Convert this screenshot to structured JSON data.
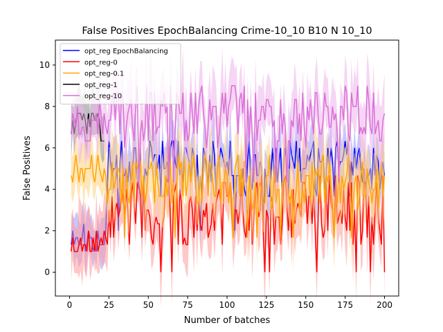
{
  "chart_data": {
    "type": "line",
    "title": "False Positives EpochBalancing Crime-10_10 B10 N 10_10",
    "xlabel": "Number of batches",
    "ylabel": "False Positives",
    "xlim": [
      -9,
      209
    ],
    "ylim": [
      -1.15,
      11.2
    ],
    "xticks": [
      0,
      25,
      50,
      75,
      100,
      125,
      150,
      175,
      200
    ],
    "yticks": [
      0,
      2,
      4,
      6,
      8,
      10
    ],
    "grid": false,
    "legend_position": "top-left",
    "series": [
      {
        "name": "opt_reg EpochBalancing",
        "color": "#0000ff",
        "band": "#9999ff",
        "mean": 5.0,
        "amp": 1.4,
        "band_w": 0.9,
        "seed": 11,
        "early": 1.7,
        "early_amp": 0.6
      },
      {
        "name": "opt_reg-0",
        "color": "#ff0000",
        "band": "#ff9999",
        "mean": 3.0,
        "amp": 1.8,
        "band_w": 1.3,
        "seed": 23,
        "early": 1.4,
        "early_amp": 0.5
      },
      {
        "name": "opt_reg-0.1",
        "color": "#ffa500",
        "band": "#ffd27f",
        "mean": 4.4,
        "amp": 1.3,
        "band_w": 1.2,
        "seed": 37,
        "early": 5.2,
        "early_amp": 0.9
      },
      {
        "name": "opt_reg-1",
        "color": "#000000",
        "band": "#888888",
        "mean": 6.5,
        "amp": 1.0,
        "band_w": 1.0,
        "seed": 41,
        "early": 7.0,
        "early_amp": 0.8,
        "only_early": true
      },
      {
        "name": "opt_reg-10",
        "color": "#da70d6",
        "band": "#eeb3ec",
        "mean": 7.6,
        "amp": 1.5,
        "band_w": 1.1,
        "seed": 53,
        "early": 7.3,
        "early_amp": 1.0
      }
    ]
  }
}
